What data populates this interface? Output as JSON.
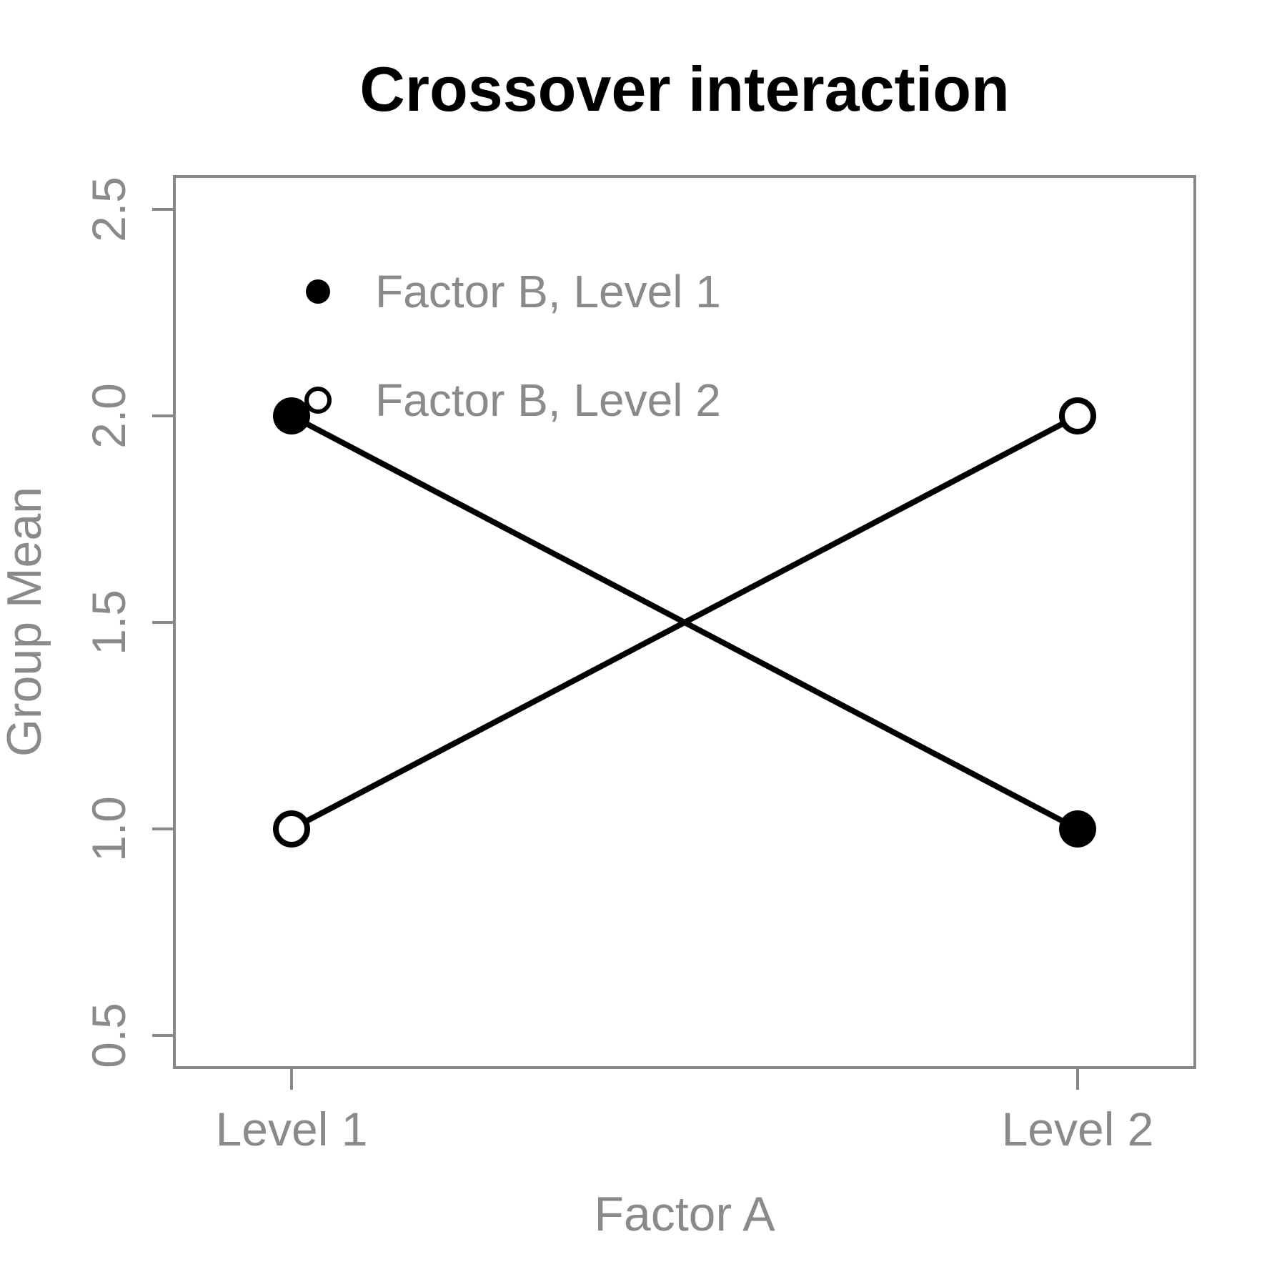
{
  "chart_data": {
    "type": "line",
    "title": "Crossover interaction",
    "xlabel": "Factor A",
    "ylabel": "Group Mean",
    "categories": [
      "Level 1",
      "Level 2"
    ],
    "series": [
      {
        "name": "Factor B, Level 1",
        "marker": "filled-circle",
        "values": [
          2.0,
          1.0
        ]
      },
      {
        "name": "Factor B, Level 2",
        "marker": "open-circle",
        "values": [
          1.0,
          2.0
        ]
      }
    ],
    "ylim": [
      0.5,
      2.5
    ],
    "yticks": [
      "0.5",
      "1.0",
      "1.5",
      "2.0",
      "2.5"
    ],
    "grid": false,
    "legend_position": "top-left-inside",
    "colors": {
      "series": "#000000",
      "axis": "#888888",
      "label_text": "#8a8a8a",
      "title": "#000000",
      "background": "#ffffff"
    }
  }
}
